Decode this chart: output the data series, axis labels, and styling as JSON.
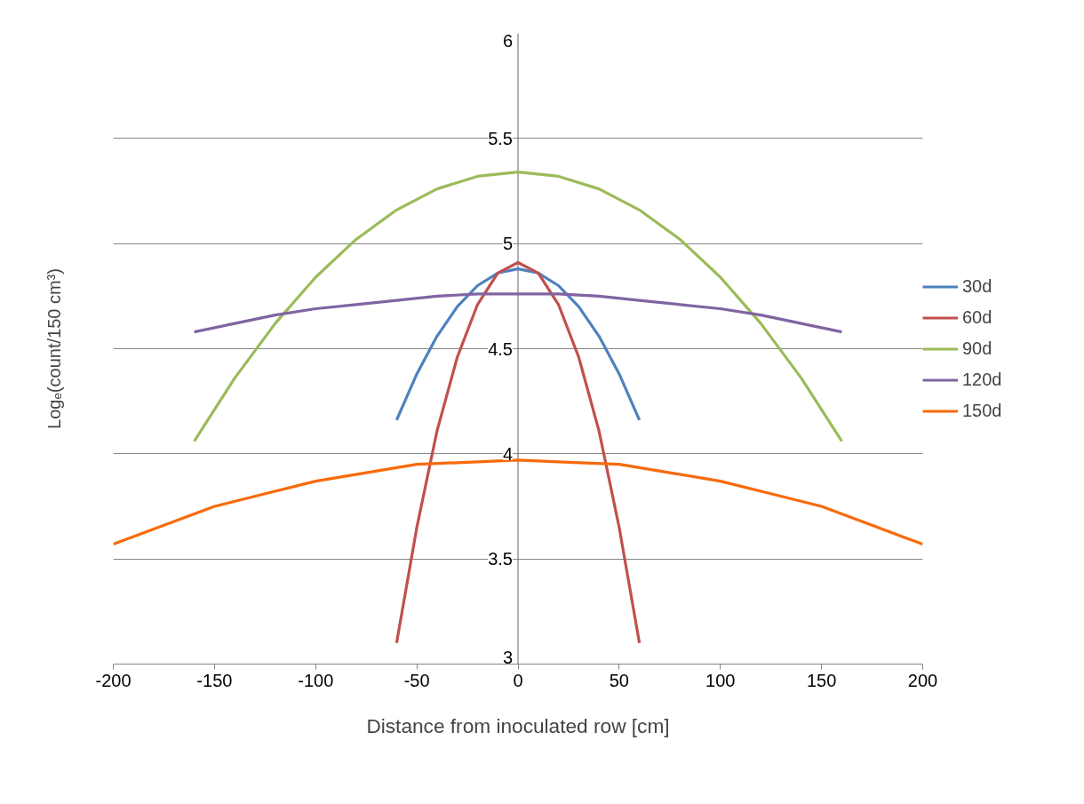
{
  "chart_data": {
    "type": "line",
    "xlabel": "Distance from inoculated row [cm]",
    "ylabel": "Logₑ(count/150 cm³)",
    "xlim": [
      -200,
      200
    ],
    "xticks": [
      -200,
      -150,
      -100,
      -50,
      0,
      50,
      100,
      150,
      200
    ],
    "ylim": [
      3,
      6
    ],
    "yticks": [
      3,
      3.5,
      4,
      4.5,
      5,
      5.5,
      6
    ],
    "grid": "y",
    "legend": "right",
    "marker": "none",
    "line_style": "solid",
    "series": [
      {
        "name": "30d",
        "color": "#4f81bd",
        "x": [
          -60,
          -50,
          -40,
          -30,
          -20,
          -10,
          0,
          10,
          20,
          30,
          40,
          50,
          60
        ],
        "values": [
          4.16,
          4.38,
          4.56,
          4.7,
          4.8,
          4.86,
          4.88,
          4.86,
          4.8,
          4.7,
          4.56,
          4.38,
          4.16
        ]
      },
      {
        "name": "60d",
        "color": "#c0504d",
        "x": [
          -60,
          -50,
          -40,
          -30,
          -20,
          -10,
          0,
          10,
          20,
          30,
          40,
          50,
          60
        ],
        "values": [
          3.1,
          3.65,
          4.11,
          4.46,
          4.71,
          4.86,
          4.91,
          4.86,
          4.71,
          4.46,
          4.11,
          3.65,
          3.1
        ]
      },
      {
        "name": "90d",
        "color": "#9bbb59",
        "x": [
          -160,
          -140,
          -120,
          -100,
          -80,
          -60,
          -40,
          -20,
          0,
          20,
          40,
          60,
          80,
          100,
          120,
          140,
          160
        ],
        "values": [
          4.06,
          4.36,
          4.62,
          4.84,
          5.02,
          5.16,
          5.26,
          5.32,
          5.34,
          5.32,
          5.26,
          5.16,
          5.02,
          4.84,
          4.62,
          4.36,
          4.06
        ]
      },
      {
        "name": "120d",
        "color": "#8064a2",
        "x": [
          -160,
          -140,
          -120,
          -100,
          -80,
          -60,
          -40,
          -20,
          0,
          20,
          40,
          60,
          80,
          100,
          120,
          140,
          160
        ],
        "values": [
          4.58,
          4.62,
          4.66,
          4.69,
          4.71,
          4.73,
          4.75,
          4.76,
          4.76,
          4.76,
          4.75,
          4.73,
          4.71,
          4.69,
          4.66,
          4.62,
          4.58
        ]
      },
      {
        "name": "150d",
        "color": "#f86a0c",
        "x": [
          -200,
          -175,
          -150,
          -125,
          -100,
          -75,
          -50,
          -25,
          0,
          25,
          50,
          75,
          100,
          125,
          150,
          175,
          200
        ],
        "values": [
          3.57,
          3.66,
          3.75,
          3.81,
          3.87,
          3.91,
          3.95,
          3.96,
          3.97,
          3.96,
          3.95,
          3.91,
          3.87,
          3.81,
          3.75,
          3.66,
          3.57
        ]
      }
    ]
  }
}
